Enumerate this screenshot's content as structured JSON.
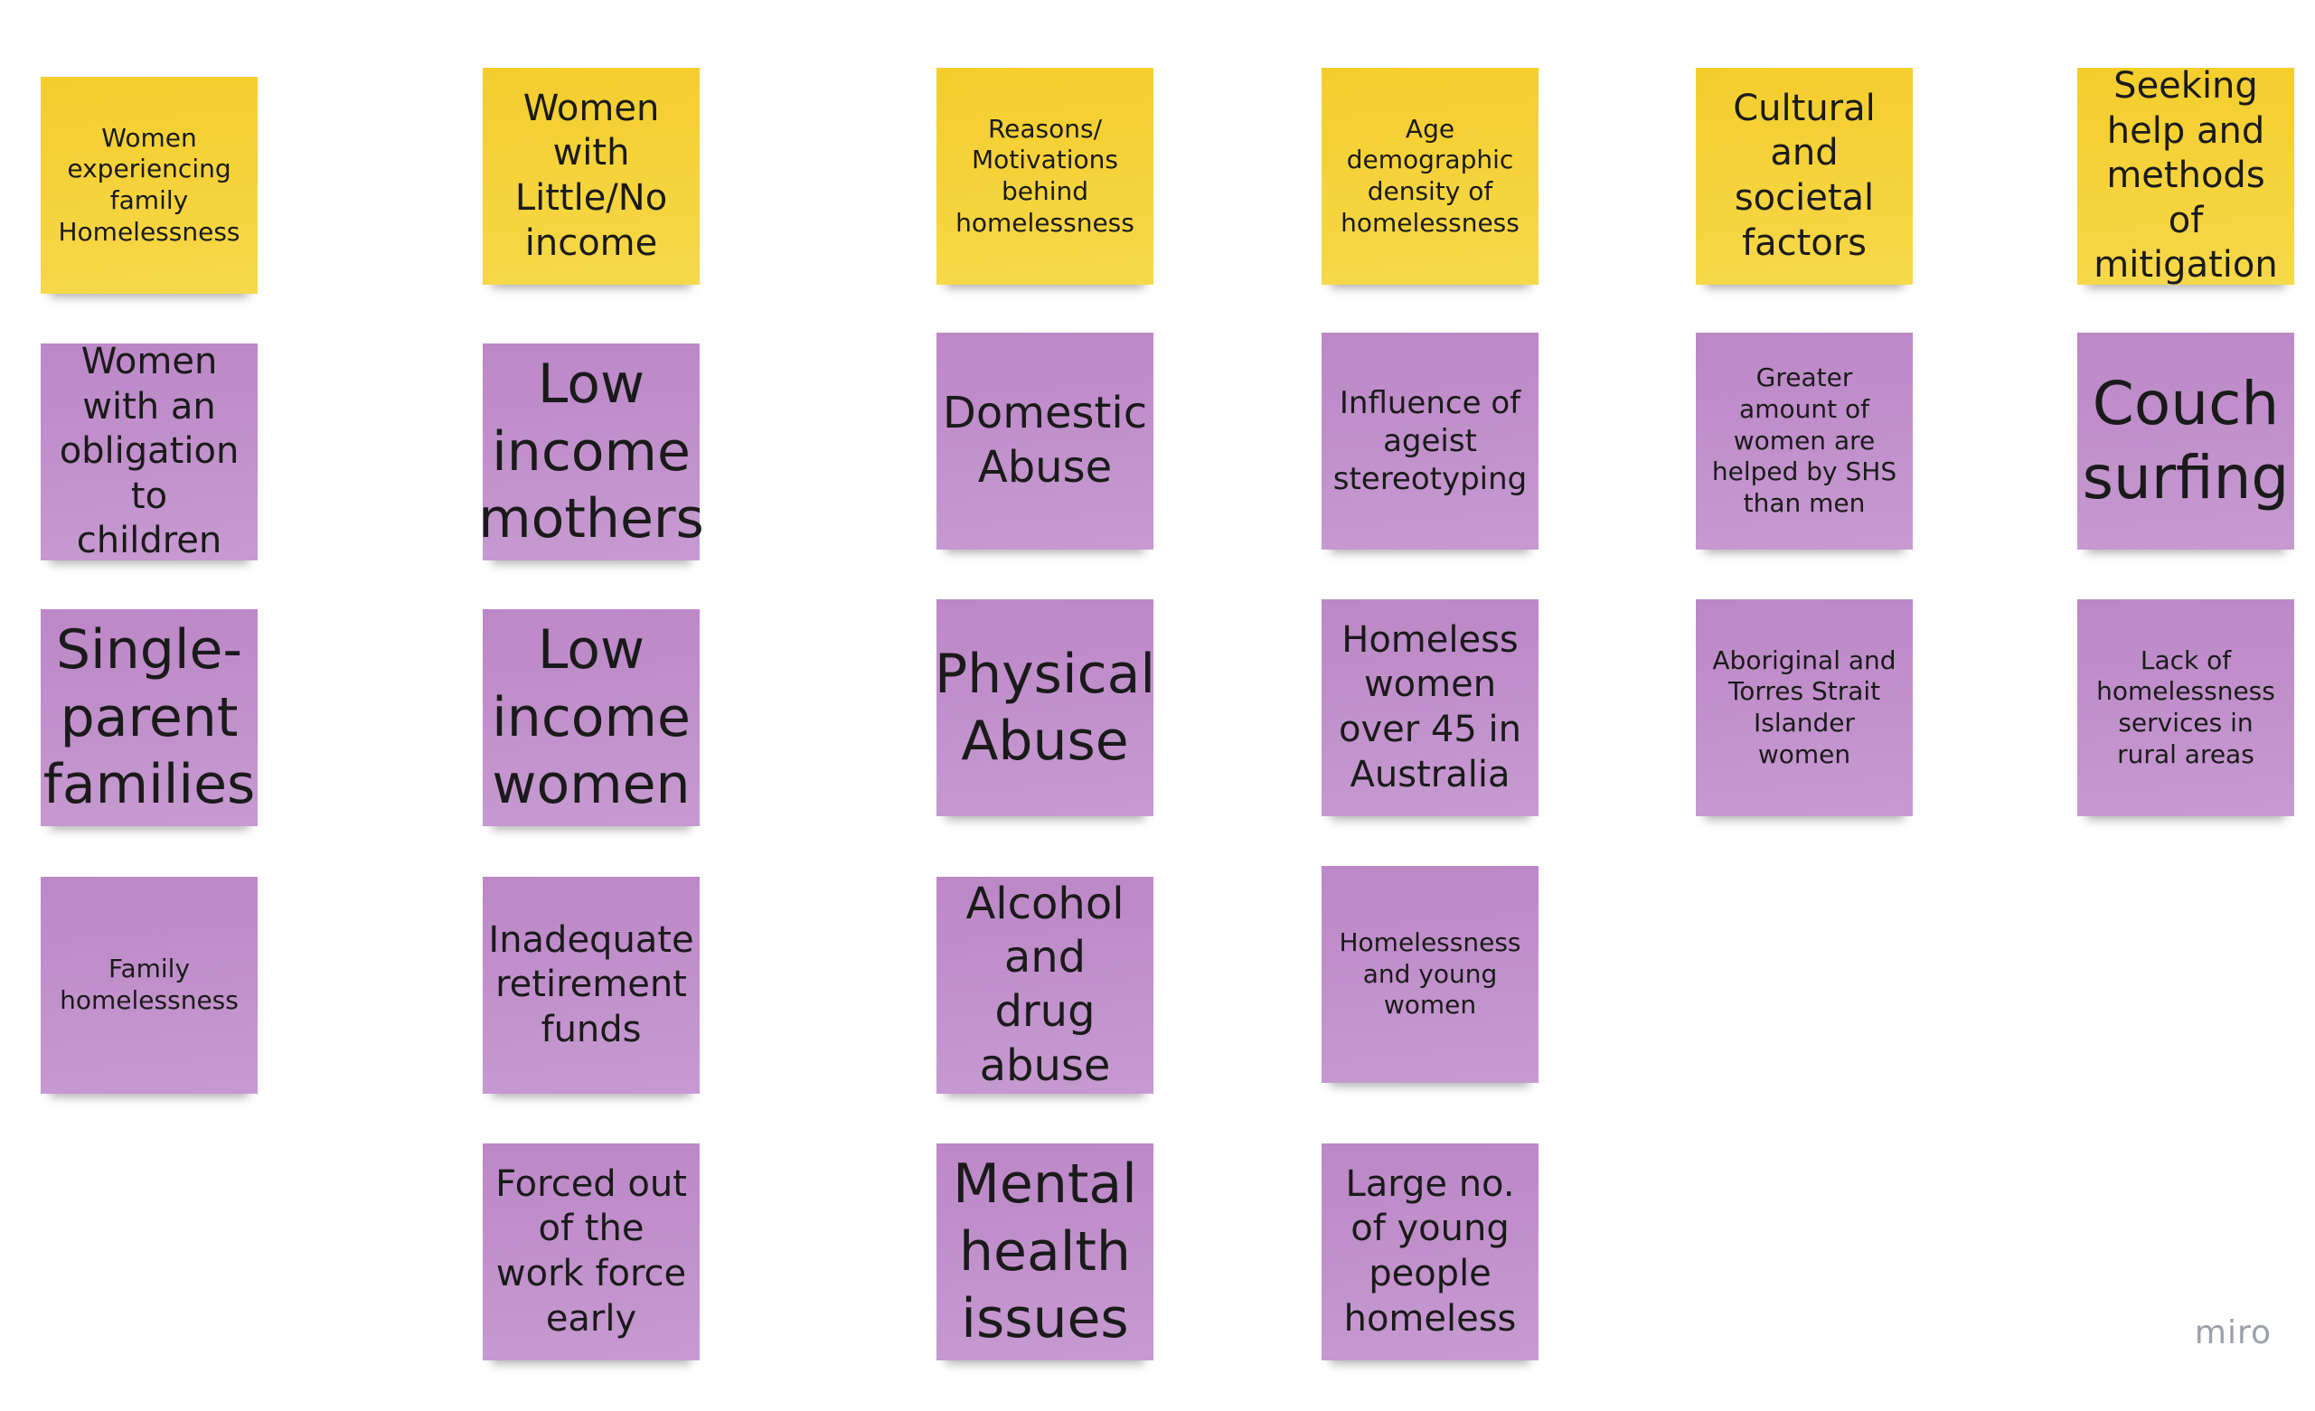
{
  "board": {
    "headers": [
      "Women experiencing family Homelessness",
      "Women with Little/No income",
      "Reasons/ Motivations behind homelessness",
      "Age demographic density of homelessness",
      "Cultural and societal factors",
      "Seeking help and methods of mitigation"
    ],
    "col1": [
      "Women with an obligation to children",
      "Single-parent families",
      "Family homelessness"
    ],
    "col2": [
      "Low income mothers",
      "Low income women",
      "Inadequate retirement funds",
      "Forced out of the work force early"
    ],
    "col3": [
      "Domestic Abuse",
      "Physical Abuse",
      "Alcohol and drug abuse",
      "Mental health issues"
    ],
    "col4": [
      "Influence of ageist stereotyping",
      "Homeless women over 45 in Australia",
      "Homelessness and young women",
      "Large no. of young people homeless"
    ],
    "col5": [
      "Greater amount of women are helped by SHS than men",
      "Aboriginal and Torres Strait Islander women"
    ],
    "col6": [
      "Couch surfing",
      "Lack of homelessness services in rural areas"
    ]
  },
  "watermark": "miro",
  "colors": {
    "header_note": "#f5d234",
    "content_note": "#c292cc"
  }
}
